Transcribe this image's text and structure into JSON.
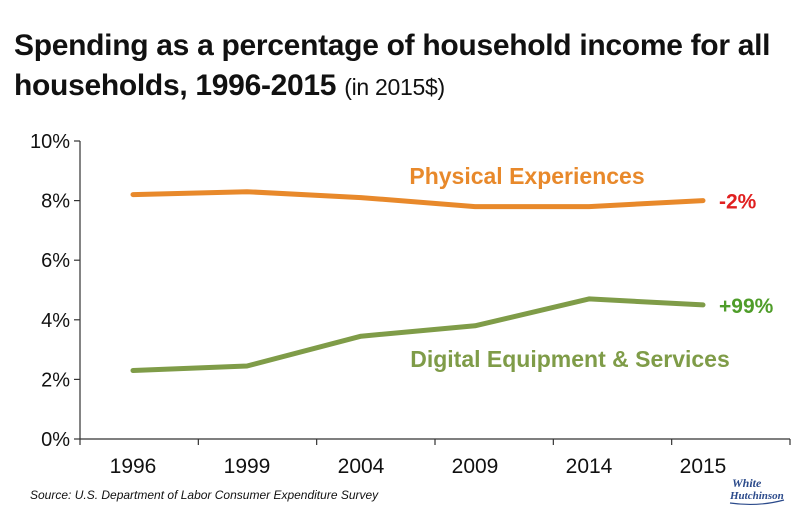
{
  "title": {
    "main": "Spending as a percentage of household income for all households, 1996-2015",
    "unit": "(in 2015$)"
  },
  "source": "Source: U.S. Department of Labor Consumer Expenditure Survey",
  "logo": {
    "line1": "White",
    "line2": "Hutchinson",
    "color": "#2b4a8b"
  },
  "chart_data": {
    "type": "line",
    "categories": [
      "1996",
      "1999",
      "2004",
      "2009",
      "2014",
      "2015"
    ],
    "y_ticks": [
      "0%",
      "2%",
      "4%",
      "6%",
      "8%",
      "10%"
    ],
    "ylim": [
      0,
      10
    ],
    "grid": false,
    "series": [
      {
        "name": "Physical Experiences",
        "values": [
          8.2,
          8.3,
          8.1,
          7.8,
          7.8,
          8.0
        ],
        "color": "#e8892b",
        "change_label": "-2%",
        "change_color": "#e02020"
      },
      {
        "name": "Digital Equipment & Services",
        "values": [
          2.3,
          2.45,
          3.45,
          3.8,
          4.7,
          4.5
        ],
        "color": "#7f9c48",
        "change_label": "+99%",
        "change_color": "#4f9d2a"
      }
    ]
  }
}
